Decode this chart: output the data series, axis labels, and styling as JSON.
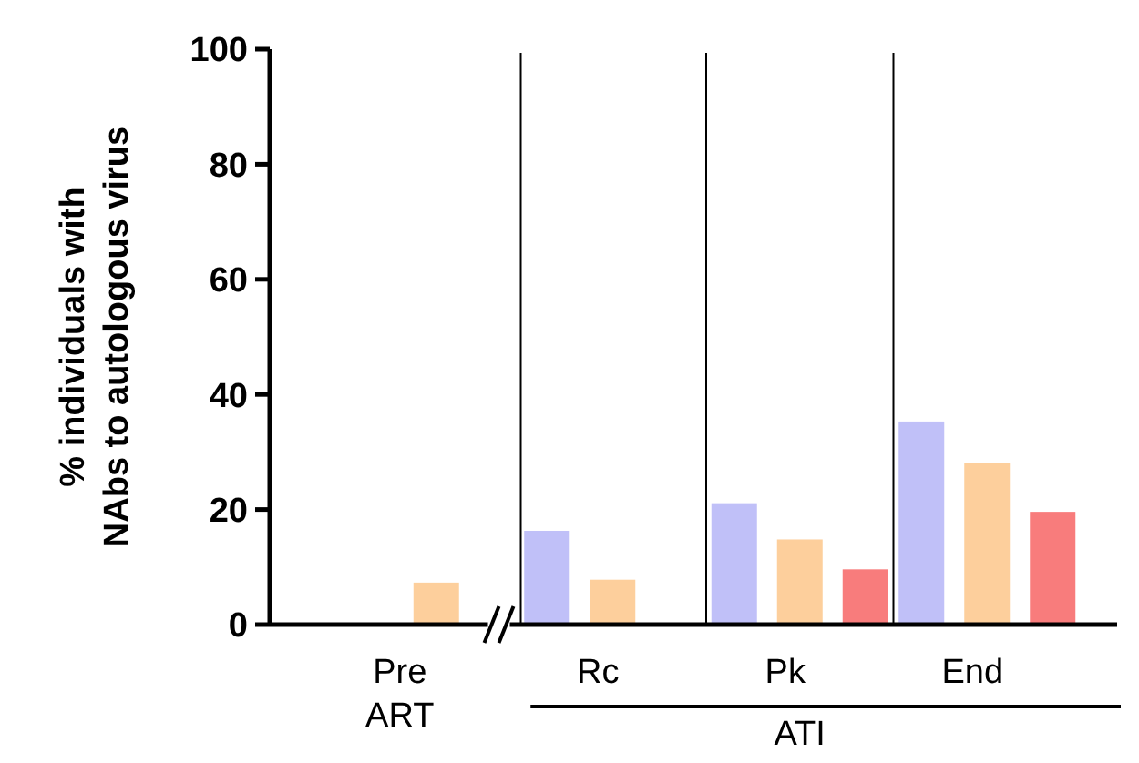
{
  "chart_data": {
    "type": "bar",
    "ylabel": "% individuals with\nNAbs to autologous virus",
    "categories": [
      "Pre\nART",
      "Rc",
      "Pk",
      "End"
    ],
    "series": [
      {
        "color": "#c0c0f8",
        "values": [
          null,
          16.3,
          21.1,
          35.3
        ]
      },
      {
        "color": "#fdcf9c",
        "values": [
          7.3,
          7.8,
          14.8,
          28.1
        ]
      },
      {
        "color": "#f87c7c",
        "values": [
          null,
          null,
          9.6,
          19.6
        ]
      }
    ],
    "ylim": [
      0,
      100
    ],
    "yticks": [
      0,
      20,
      40,
      60,
      80,
      100
    ],
    "annotations": [
      "ATI"
    ]
  }
}
